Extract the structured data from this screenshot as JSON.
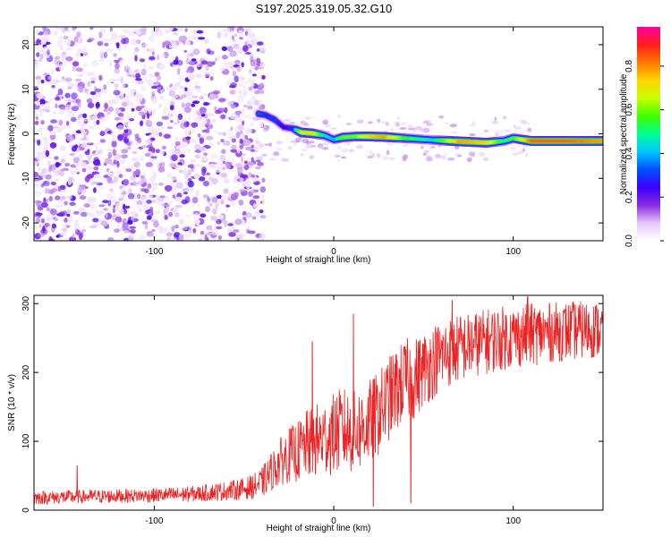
{
  "title": "S197.2025.319.05.32.G10",
  "chart_data": [
    {
      "type": "heatmap",
      "name": "spectrogram",
      "xlabel": "Height of straight line (km)",
      "ylabel": "Frequency (Hz)",
      "xlim": [
        -167,
        150
      ],
      "ylim": [
        -24,
        24
      ],
      "xticks": [
        -100,
        0,
        100
      ],
      "yticks": [
        -20,
        -10,
        0,
        10,
        20
      ],
      "colorbar": {
        "label": "Normalized spectral amplitude",
        "range": [
          0,
          0.98
        ],
        "ticks": [
          "0.0",
          "0.2",
          "0.4",
          "0.6",
          "0.8"
        ],
        "colormap": [
          "#ffffff",
          "#e4c8f8",
          "#8a2be2",
          "#3a00ff",
          "#0050ff",
          "#00c8ff",
          "#00ff90",
          "#40ff00",
          "#c8ff00",
          "#ffd400",
          "#ff7800",
          "#ff1e1e",
          "#ff00a0"
        ]
      },
      "noise_region_km": [
        -167,
        -43
      ],
      "signal_track": [
        {
          "x": -42,
          "y": 4.5,
          "amp": 0.35
        },
        {
          "x": -38,
          "y": 4.2,
          "amp": 0.3
        },
        {
          "x": -33,
          "y": 3.2,
          "amp": 0.32
        },
        {
          "x": -28,
          "y": 1.5,
          "amp": 0.25
        },
        {
          "x": -23,
          "y": 1.2,
          "amp": 0.3
        },
        {
          "x": -18,
          "y": 0.3,
          "amp": 0.7
        },
        {
          "x": -12,
          "y": 0.1,
          "amp": 0.75
        },
        {
          "x": -5,
          "y": -0.4,
          "amp": 0.45
        },
        {
          "x": 0,
          "y": -1.3,
          "amp": 0.4
        },
        {
          "x": 5,
          "y": -0.8,
          "amp": 0.6
        },
        {
          "x": 12,
          "y": -0.6,
          "amp": 0.6
        },
        {
          "x": 20,
          "y": -0.6,
          "amp": 0.75
        },
        {
          "x": 28,
          "y": -0.7,
          "amp": 0.8
        },
        {
          "x": 40,
          "y": -1.0,
          "amp": 0.55
        },
        {
          "x": 55,
          "y": -1.4,
          "amp": 0.45
        },
        {
          "x": 70,
          "y": -1.7,
          "amp": 0.8
        },
        {
          "x": 85,
          "y": -2.0,
          "amp": 0.75
        },
        {
          "x": 95,
          "y": -1.6,
          "amp": 0.5
        },
        {
          "x": 100,
          "y": -1.0,
          "amp": 0.55
        },
        {
          "x": 110,
          "y": -1.6,
          "amp": 0.85
        },
        {
          "x": 130,
          "y": -1.6,
          "amp": 0.85
        },
        {
          "x": 150,
          "y": -1.6,
          "amp": 0.8
        }
      ]
    },
    {
      "type": "line",
      "name": "snr",
      "xlabel": "Height of straight line (km)",
      "ylabel": "SNR (10 * v/v)",
      "xlim": [
        -167,
        150
      ],
      "ylim": [
        0,
        312
      ],
      "xticks": [
        -100,
        0,
        100
      ],
      "yticks": [
        0,
        100,
        200,
        300
      ],
      "color": "#ee2222",
      "series": [
        {
          "name": "SNR",
          "x": [
            -167,
            -150,
            -130,
            -110,
            -90,
            -75,
            -60,
            -50,
            -45,
            -40,
            -35,
            -30,
            -25,
            -20,
            -15,
            -10,
            -5,
            0,
            5,
            10,
            15,
            20,
            25,
            30,
            35,
            40,
            45,
            50,
            55,
            60,
            70,
            80,
            90,
            100,
            110,
            120,
            130,
            140,
            150
          ],
          "mean": [
            18,
            19,
            20,
            21,
            22,
            24,
            28,
            31,
            34,
            40,
            55,
            70,
            80,
            85,
            95,
            100,
            105,
            110,
            118,
            112,
            118,
            128,
            140,
            160,
            175,
            190,
            190,
            205,
            215,
            225,
            235,
            242,
            248,
            252,
            255,
            258,
            260,
            262,
            262
          ],
          "spread": [
            10,
            10,
            10,
            10,
            11,
            12,
            14,
            16,
            18,
            22,
            28,
            35,
            40,
            45,
            50,
            55,
            55,
            60,
            62,
            60,
            62,
            62,
            62,
            62,
            62,
            60,
            60,
            55,
            55,
            52,
            50,
            48,
            48,
            46,
            46,
            44,
            44,
            42,
            42
          ]
        }
      ],
      "spikes": [
        {
          "x": -143,
          "y": 65
        },
        {
          "x": -12,
          "y": 245
        },
        {
          "x": 11,
          "y": 285
        },
        {
          "x": 43,
          "y": 10
        },
        {
          "x": 22,
          "y": 5
        },
        {
          "x": 66,
          "y": 305
        },
        {
          "x": 108,
          "y": 310
        }
      ]
    }
  ]
}
